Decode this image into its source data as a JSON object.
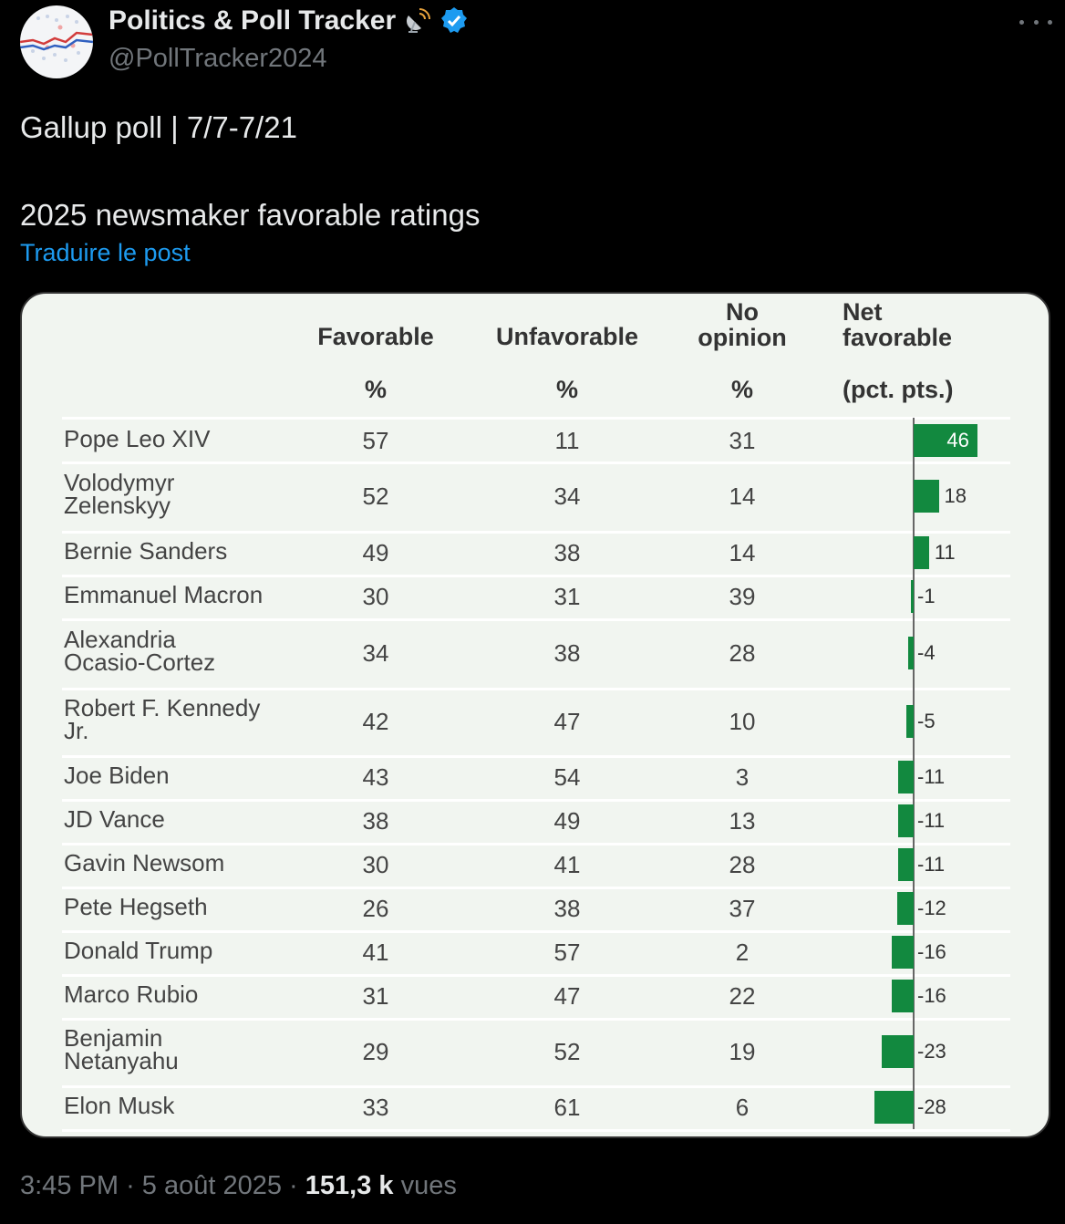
{
  "account": {
    "display_name": "Politics & Poll Tracker",
    "handle": "@PollTracker2024",
    "badge_icon": "verified-badge-icon",
    "emoji_icon": "satellite-antenna-icon"
  },
  "post": {
    "line1": "Gallup poll | 7/7-7/21",
    "line2": "2025 newsmaker favorable ratings",
    "translate": "Traduire le post"
  },
  "table": {
    "headers": {
      "favorable": "Favorable",
      "unfavorable": "Unfavorable",
      "no_opinion_1": "No",
      "no_opinion_2": "opinion",
      "net_1": "Net",
      "net_2": "favorable",
      "unit_pct": "%",
      "unit_pts": "(pct. pts.)"
    },
    "rows": [
      {
        "name": "Pope Leo XIV",
        "favorable": "57",
        "unfavorable": "11",
        "no_opinion": "31",
        "net": "46"
      },
      {
        "name": "Volodymyr\nZelenskyy",
        "favorable": "52",
        "unfavorable": "34",
        "no_opinion": "14",
        "net": "18"
      },
      {
        "name": "Bernie Sanders",
        "favorable": "49",
        "unfavorable": "38",
        "no_opinion": "14",
        "net": "11"
      },
      {
        "name": "Emmanuel Macron",
        "favorable": "30",
        "unfavorable": "31",
        "no_opinion": "39",
        "net": "-1"
      },
      {
        "name": "Alexandria\nOcasio-Cortez",
        "favorable": "34",
        "unfavorable": "38",
        "no_opinion": "28",
        "net": "-4"
      },
      {
        "name": "Robert F. Kennedy\nJr.",
        "favorable": "42",
        "unfavorable": "47",
        "no_opinion": "10",
        "net": "-5"
      },
      {
        "name": "Joe Biden",
        "favorable": "43",
        "unfavorable": "54",
        "no_opinion": "3",
        "net": "-11"
      },
      {
        "name": "JD Vance",
        "favorable": "38",
        "unfavorable": "49",
        "no_opinion": "13",
        "net": "-11"
      },
      {
        "name": "Gavin Newsom",
        "favorable": "30",
        "unfavorable": "41",
        "no_opinion": "28",
        "net": "-11"
      },
      {
        "name": "Pete Hegseth",
        "favorable": "26",
        "unfavorable": "38",
        "no_opinion": "37",
        "net": "-12"
      },
      {
        "name": "Donald Trump",
        "favorable": "41",
        "unfavorable": "57",
        "no_opinion": "2",
        "net": "-16"
      },
      {
        "name": "Marco Rubio",
        "favorable": "31",
        "unfavorable": "47",
        "no_opinion": "22",
        "net": "-16"
      },
      {
        "name": "Benjamin\nNetanyahu",
        "favorable": "29",
        "unfavorable": "52",
        "no_opinion": "19",
        "net": "-23"
      },
      {
        "name": "Elon Musk",
        "favorable": "33",
        "unfavorable": "61",
        "no_opinion": "6",
        "net": "-28"
      }
    ],
    "bar_color": "#12893f"
  },
  "footer": {
    "time": "3:45 PM",
    "date": "5 août 2025",
    "views_count": "151,3 k",
    "views_label": "vues"
  }
}
